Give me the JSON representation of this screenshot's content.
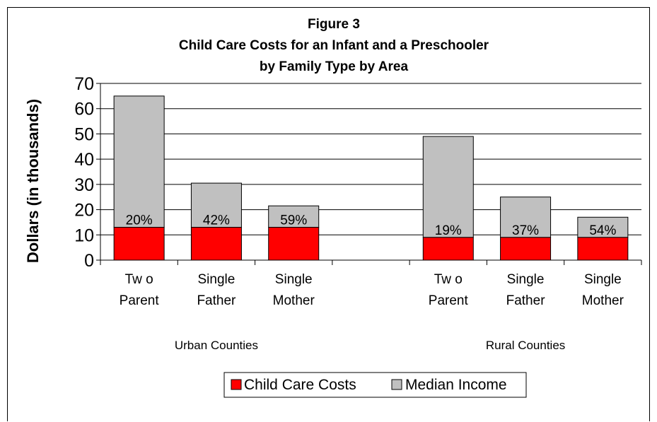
{
  "chart_data": {
    "type": "bar",
    "stacked": true,
    "title": [
      "Figure 3",
      "Child Care Costs for an Infant and a Preschooler",
      "by Family Type by Area"
    ],
    "ylabel": "Dollars (in thousands)",
    "xlabel": "",
    "ylim": [
      0,
      70
    ],
    "yticks": [
      0,
      10,
      20,
      30,
      40,
      50,
      60,
      70
    ],
    "grid": true,
    "legend_position": "bottom",
    "groups": [
      {
        "name": "Urban Counties",
        "categories": [
          [
            "Tw o",
            "Parent"
          ],
          [
            "Single",
            "Father"
          ],
          [
            "Single",
            "Mother"
          ]
        ],
        "child_care_costs": [
          13,
          13,
          13
        ],
        "median_income": [
          65,
          30.5,
          21.5
        ],
        "percent_labels": [
          "20%",
          "42%",
          "59%"
        ]
      },
      {
        "name": "Rural Counties",
        "categories": [
          [
            "Tw o",
            "Parent"
          ],
          [
            "Single",
            "Father"
          ],
          [
            "Single",
            "Mother"
          ]
        ],
        "child_care_costs": [
          9,
          9,
          9
        ],
        "median_income": [
          49,
          25,
          17
        ],
        "percent_labels": [
          "19%",
          "37%",
          "54%"
        ]
      }
    ],
    "series": [
      {
        "name": "Child Care Costs",
        "color": "#ff0000"
      },
      {
        "name": "Median Income",
        "color": "#c0c0c0"
      }
    ]
  }
}
